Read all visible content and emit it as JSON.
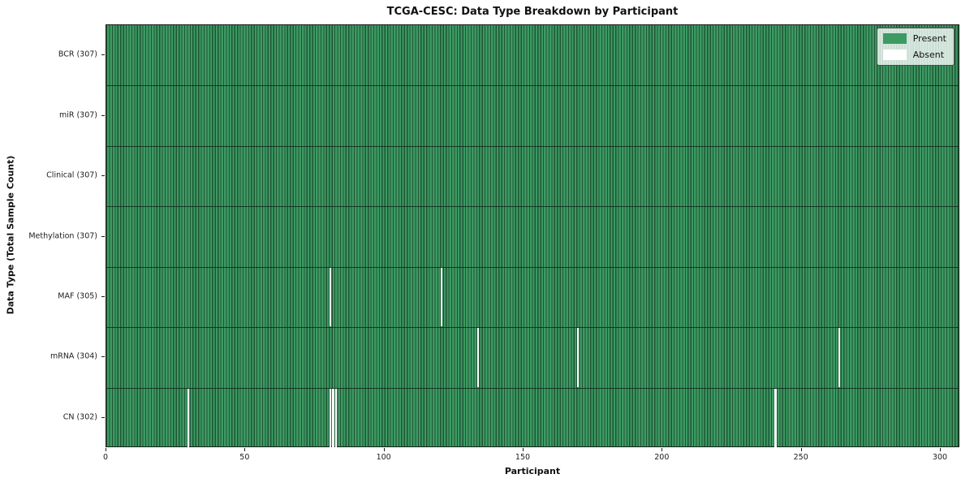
{
  "figure": {
    "title": "TCGA-CESC: Data Type Breakdown by Participant",
    "xlabel": "Participant",
    "ylabel": "Data Type (Total Sample Count)"
  },
  "legend": {
    "items": [
      {
        "label": "Present",
        "color": "#3d9a63"
      },
      {
        "label": "Absent",
        "color": "#ffffff"
      }
    ],
    "position": "upper right"
  },
  "chart_data": {
    "type": "heatmap",
    "title": "TCGA-CESC: Data Type Breakdown by Participant",
    "xlabel": "Participant",
    "ylabel": "Data Type (Total Sample Count)",
    "n_participants": 307,
    "xlim": [
      0,
      307
    ],
    "x_ticks": [
      0,
      50,
      100,
      150,
      200,
      250,
      300
    ],
    "grid": false,
    "legend_entries": [
      "Present",
      "Absent"
    ],
    "legend_position": "upper right",
    "rows": [
      {
        "label": "BCR",
        "total": 307,
        "display": "BCR (307)",
        "absent_participants": []
      },
      {
        "label": "miR",
        "total": 307,
        "display": "miR (307)",
        "absent_participants": []
      },
      {
        "label": "Clinical",
        "total": 307,
        "display": "Clinical (307)",
        "absent_participants": []
      },
      {
        "label": "Methylation",
        "total": 307,
        "display": "Methylation (307)",
        "absent_participants": []
      },
      {
        "label": "MAF",
        "total": 305,
        "display": "MAF (305)",
        "absent_participants": [
          80,
          120
        ]
      },
      {
        "label": "mRNA",
        "total": 304,
        "display": "mRNA (304)",
        "absent_participants": [
          133,
          169,
          263
        ]
      },
      {
        "label": "CN",
        "total": 302,
        "display": "CN (302)",
        "absent_participants": [
          29,
          80,
          81,
          82,
          240
        ]
      }
    ],
    "colors": {
      "present": "#3d9a63",
      "absent": "#ffffff",
      "edge": "#1e5534"
    }
  }
}
